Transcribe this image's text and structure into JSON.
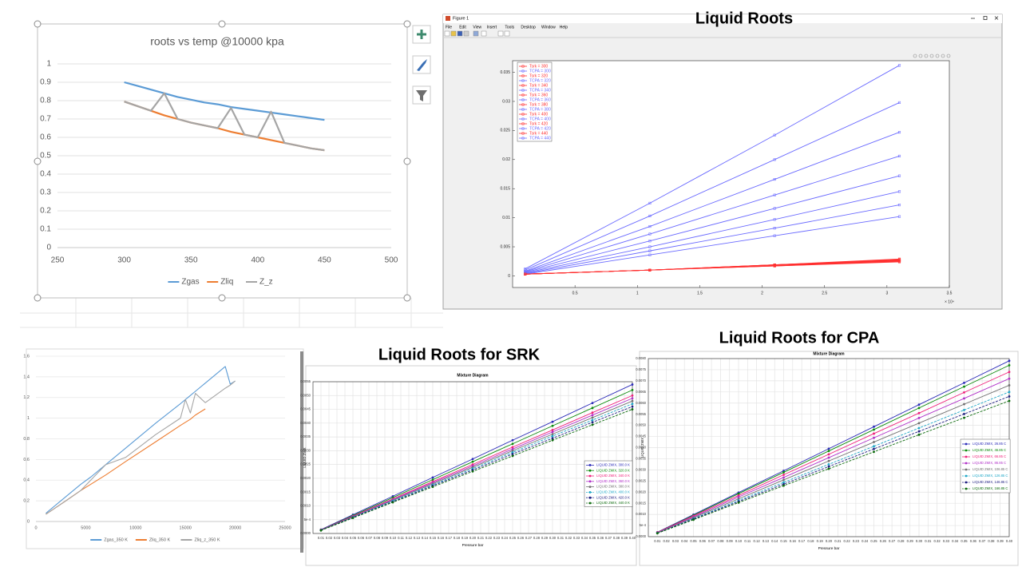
{
  "figure_window": {
    "title": "Figure 1",
    "menu": [
      "File",
      "Edit",
      "View",
      "Insert",
      "Tools",
      "Desktop",
      "Window",
      "Help"
    ]
  },
  "chart_data": [
    {
      "type": "line",
      "title": "roots vs temp @10000 kpa",
      "x": [
        300,
        310,
        320,
        330,
        340,
        350,
        360,
        370,
        380,
        390,
        400,
        410,
        420,
        430,
        440,
        450
      ],
      "xlim": [
        250,
        500
      ],
      "xticks": [
        250,
        300,
        350,
        400,
        450,
        500
      ],
      "ylim": [
        0,
        1
      ],
      "yticks": [
        0,
        0.1,
        0.2,
        0.3,
        0.4,
        0.5,
        0.6,
        0.7,
        0.8,
        0.9,
        1
      ],
      "grid": "y",
      "legend": "bottom",
      "series": [
        {
          "name": "Zgas",
          "color": "#5b9bd5",
          "values": [
            0.9,
            0.88,
            0.86,
            0.84,
            0.82,
            0.805,
            0.79,
            0.78,
            0.765,
            0.755,
            0.745,
            0.735,
            0.725,
            0.715,
            0.705,
            0.695
          ]
        },
        {
          "name": "Zliq",
          "color": "#ed7d31",
          "values": [
            0.795,
            0.77,
            0.745,
            0.72,
            0.7,
            0.68,
            0.665,
            0.65,
            0.63,
            0.615,
            0.6,
            0.585,
            0.57,
            0.555,
            0.54,
            0.53
          ]
        },
        {
          "name": "Z_z",
          "color": "#a5a5a5",
          "values": [
            0.795,
            0.77,
            0.745,
            0.84,
            0.7,
            0.68,
            0.665,
            0.65,
            0.76,
            0.615,
            0.6,
            0.74,
            0.57,
            0.555,
            0.54,
            0.53
          ]
        }
      ]
    },
    {
      "type": "line",
      "caption": "Liquid Roots",
      "x": [
        0.1,
        1.1,
        2.1,
        3.1
      ],
      "xlim": [
        0,
        3.5
      ],
      "xticks": [
        0.5,
        1,
        1.5,
        2,
        2.5,
        3,
        3.5
      ],
      "x_exponent": "× 10⁴",
      "ylim": [
        -0.002,
        0.037
      ],
      "yticks": [
        0,
        0.005,
        0.01,
        0.015,
        0.02,
        0.025,
        0.03,
        0.035
      ],
      "grid": false,
      "legend": "top-left",
      "marker": "square",
      "series": [
        {
          "name": "Tsrk = 300",
          "color": "#ff3030",
          "values": [
            0.0003,
            0.001,
            0.0017,
            0.0024
          ]
        },
        {
          "name": "TCPA = 300",
          "color": "#6a6aff",
          "values": [
            0.0003,
            0.0036,
            0.0069,
            0.0102
          ]
        },
        {
          "name": "Tsrk = 320",
          "color": "#ff3030",
          "values": [
            0.0003,
            0.001,
            0.0017,
            0.0025
          ]
        },
        {
          "name": "TCPA = 320",
          "color": "#6a6aff",
          "values": [
            0.0004,
            0.0043,
            0.0082,
            0.0122
          ]
        },
        {
          "name": "Tsrk = 340",
          "color": "#ff3030",
          "values": [
            0.0003,
            0.001,
            0.0018,
            0.0025
          ]
        },
        {
          "name": "TCPA = 340",
          "color": "#6a6aff",
          "values": [
            0.0005,
            0.005,
            0.0097,
            0.0145
          ]
        },
        {
          "name": "Tsrk = 360",
          "color": "#ff3030",
          "values": [
            0.0003,
            0.001,
            0.0018,
            0.0026
          ]
        },
        {
          "name": "TCPA = 360",
          "color": "#6a6aff",
          "values": [
            0.0006,
            0.006,
            0.0116,
            0.0172
          ]
        },
        {
          "name": "Tsrk = 380",
          "color": "#ff3030",
          "values": [
            0.0003,
            0.001,
            0.0018,
            0.0027
          ]
        },
        {
          "name": "TCPA = 380",
          "color": "#6a6aff",
          "values": [
            0.0007,
            0.0072,
            0.0139,
            0.0206
          ]
        },
        {
          "name": "Tsrk = 400",
          "color": "#ff3030",
          "values": [
            0.0003,
            0.001,
            0.0019,
            0.0027
          ]
        },
        {
          "name": "TCPA = 400",
          "color": "#6a6aff",
          "values": [
            0.0008,
            0.0085,
            0.0166,
            0.0247
          ]
        },
        {
          "name": "Tsrk = 420",
          "color": "#ff3030",
          "values": [
            0.0003,
            0.001,
            0.0019,
            0.0028
          ]
        },
        {
          "name": "TCPA = 420",
          "color": "#6a6aff",
          "values": [
            0.001,
            0.0103,
            0.02,
            0.0298
          ]
        },
        {
          "name": "Tsrk = 440",
          "color": "#ff3030",
          "values": [
            0.0003,
            0.001,
            0.0019,
            0.0029
          ]
        },
        {
          "name": "TCPA = 440",
          "color": "#6a6aff",
          "values": [
            0.0012,
            0.0125,
            0.0242,
            0.0362
          ]
        }
      ]
    },
    {
      "type": "line",
      "x": [
        1000,
        3000,
        4500,
        5500,
        7000,
        9000,
        12000,
        14500,
        15000,
        15500,
        16000,
        17000,
        19000,
        19500,
        20000
      ],
      "xlim": [
        0,
        25000
      ],
      "xticks": [
        0,
        5000,
        10000,
        15000,
        20000,
        25000
      ],
      "ylim": [
        0,
        1.6
      ],
      "yticks": [
        0,
        0.2,
        0.4,
        0.6,
        0.8,
        1,
        1.2,
        1.4,
        1.6
      ],
      "grid": "y",
      "legend": "bottom",
      "series": [
        {
          "name": "Zgas_350 K",
          "color": "#5b9bd5",
          "values": [
            0.08,
            0.24,
            0.36,
            0.43,
            0.55,
            0.71,
            0.95,
            1.14,
            1.18,
            1.22,
            1.26,
            1.34,
            1.5,
            1.33,
            1.36
          ]
        },
        {
          "name": "Zliq_350 K",
          "color": "#ed7d31",
          "values": [
            0.07,
            0.2,
            0.3,
            0.36,
            0.45,
            0.58,
            0.77,
            0.93,
            0.96,
            0.99,
            1.03,
            1.09,
            null,
            null,
            null
          ]
        },
        {
          "name": "Zliq_z_350 K",
          "color": "#a5a5a5",
          "values": [
            0.07,
            0.2,
            0.3,
            0.4,
            0.55,
            0.62,
            0.84,
            1.0,
            1.18,
            1.05,
            1.24,
            1.15,
            1.29,
            1.32,
            1.36
          ]
        }
      ]
    },
    {
      "type": "line",
      "caption": "Liquid Roots for SRK",
      "title": "Mixture Diagram",
      "xlabel": "Pressure bar",
      "ylabel": "LIQUID ZMIX",
      "x": [
        0.01,
        0.05,
        0.1,
        0.15,
        0.2,
        0.25,
        0.3,
        0.35,
        0.4
      ],
      "xlim": [
        0,
        0.4
      ],
      "xticks": [
        0.01,
        0.02,
        0.03,
        0.04,
        0.05,
        0.06,
        0.07,
        0.08,
        0.09,
        {
          "value": 0.1,
          "label": "0.10"
        },
        0.11,
        0.12,
        0.13,
        0.14,
        0.15,
        0.16,
        0.17,
        0.18,
        0.19,
        {
          "value": 0.2,
          "label": "0.20"
        },
        0.21,
        0.22,
        0.23,
        0.24,
        0.25,
        0.26,
        0.27,
        0.28,
        0.29,
        {
          "value": 0.3,
          "label": "0.30"
        },
        0.31,
        0.32,
        0.33,
        0.34,
        0.35,
        0.36,
        0.37,
        0.38,
        0.39,
        {
          "value": 0.4,
          "label": "0.40"
        }
      ],
      "ylim": [
        0,
        0.0055
      ],
      "yticks": [
        {
          "value": 0,
          "label": "0.0000"
        },
        {
          "value": 0.0005,
          "label": "5e-4"
        },
        {
          "value": 0.001,
          "label": "0.0010"
        },
        0.0015,
        {
          "value": 0.002,
          "label": "0.0020"
        },
        0.0025,
        {
          "value": 0.003,
          "label": "0.0030"
        },
        0.0035,
        {
          "value": 0.004,
          "label": "0.0040"
        },
        0.0045,
        {
          "value": 0.005,
          "label": "0.0050"
        },
        0.0055
      ],
      "grid": "both",
      "legend": "right",
      "marker": "circle",
      "series": [
        {
          "name": "LIQUID ZMIX, 300.0 K",
          "color": "#2a2ab8",
          "values": [
            0.00014,
            0.00068,
            0.00135,
            0.00203,
            0.0027,
            0.00338,
            0.00405,
            0.00473,
            0.0054
          ]
        },
        {
          "name": "LIQUID ZMIX, 320.0 K",
          "color": "#0b8a0b",
          "values": [
            0.00013,
            0.00065,
            0.0013,
            0.00195,
            0.0026,
            0.00325,
            0.0039,
            0.00455,
            0.0052
          ]
        },
        {
          "name": "LIQUID ZMIX, 340.0 K",
          "color": "#f0207a",
          "values": [
            0.00013,
            0.00063,
            0.00125,
            0.00188,
            0.0025,
            0.00313,
            0.00375,
            0.00438,
            0.005
          ]
        },
        {
          "name": "LIQUID ZMIX, 360.0 K",
          "color": "#b030c8",
          "values": [
            0.00012,
            0.00061,
            0.00123,
            0.00184,
            0.00245,
            0.00306,
            0.00368,
            0.00429,
            0.0049
          ]
        },
        {
          "name": "LIQUID ZMIX, 380.0 K",
          "color": "#707070",
          "values": [
            0.00012,
            0.0006,
            0.0012,
            0.0018,
            0.0024,
            0.003,
            0.0036,
            0.0042,
            0.0048
          ]
        },
        {
          "name": "LIQUID ZMIX, 400.0 K",
          "color": "#20a8c8",
          "dashed": true,
          "values": [
            0.00012,
            0.00059,
            0.00118,
            0.00176,
            0.00235,
            0.00294,
            0.00353,
            0.00411,
            0.0047
          ]
        },
        {
          "name": "LIQUID ZMIX, 420.0 K",
          "color": "#1e1e80",
          "dashed": true,
          "values": [
            0.00012,
            0.00058,
            0.00115,
            0.00173,
            0.0023,
            0.00288,
            0.00345,
            0.00403,
            0.0046
          ]
        },
        {
          "name": "LIQUID ZMIX, 440.0 K",
          "color": "#0d6b0d",
          "dashed": true,
          "values": [
            0.00011,
            0.00056,
            0.00113,
            0.00169,
            0.00225,
            0.00281,
            0.00338,
            0.00394,
            0.0045
          ]
        }
      ]
    },
    {
      "type": "line",
      "caption": "Liquid Roots for CPA",
      "title": "Mixture Diagram",
      "xlabel": "Pressure bar",
      "ylabel": "LIQUID ZMIX",
      "x": [
        0.01,
        0.05,
        0.1,
        0.15,
        0.2,
        0.25,
        0.3,
        0.35,
        0.4
      ],
      "xlim": [
        0,
        0.4
      ],
      "xticks": [
        0.01,
        0.02,
        0.03,
        0.04,
        0.05,
        0.06,
        0.07,
        0.08,
        0.09,
        {
          "value": 0.1,
          "label": "0.10"
        },
        0.11,
        0.12,
        0.13,
        0.14,
        0.15,
        0.16,
        0.17,
        0.18,
        0.19,
        {
          "value": 0.2,
          "label": "0.20"
        },
        0.21,
        0.22,
        0.23,
        0.24,
        0.25,
        0.26,
        0.27,
        0.28,
        0.29,
        {
          "value": 0.3,
          "label": "0.30"
        },
        0.31,
        0.32,
        0.33,
        0.34,
        0.35,
        0.36,
        0.37,
        0.38,
        0.39,
        {
          "value": 0.4,
          "label": "0.40"
        }
      ],
      "ylim": [
        0,
        0.008
      ],
      "yticks": [
        {
          "value": 0,
          "label": "0.0000"
        },
        {
          "value": 0.0005,
          "label": "5e-4"
        },
        {
          "value": 0.001,
          "label": "0.0010"
        },
        0.0015,
        {
          "value": 0.002,
          "label": "0.0020"
        },
        0.0025,
        {
          "value": 0.003,
          "label": "0.0030"
        },
        0.0035,
        {
          "value": 0.004,
          "label": "0.0040"
        },
        0.0045,
        {
          "value": 0.005,
          "label": "0.0050"
        },
        0.0055,
        {
          "value": 0.006,
          "label": "0.0060"
        },
        0.0065,
        {
          "value": 0.007,
          "label": "0.0070"
        },
        0.0075,
        {
          "value": 0.008,
          "label": "0.0080"
        }
      ],
      "grid": "both",
      "legend": "right",
      "marker": "circle",
      "series": [
        {
          "name": "LIQUID ZMIX, 26.85 C",
          "color": "#2a2ab8",
          "values": [
            0.0002,
            0.00099,
            0.00198,
            0.00296,
            0.00395,
            0.00494,
            0.00593,
            0.00691,
            0.0079
          ]
        },
        {
          "name": "LIQUID ZMIX, 46.85 C",
          "color": "#0b8a0b",
          "values": [
            0.00019,
            0.00096,
            0.00193,
            0.00289,
            0.00385,
            0.00481,
            0.00578,
            0.00674,
            0.0077
          ]
        },
        {
          "name": "LIQUID ZMIX, 66.85 C",
          "color": "#f0207a",
          "values": [
            0.00019,
            0.00093,
            0.00185,
            0.00278,
            0.0037,
            0.00463,
            0.00555,
            0.00648,
            0.0074
          ]
        },
        {
          "name": "LIQUID ZMIX, 86.85 C",
          "color": "#b030c8",
          "values": [
            0.00018,
            0.00089,
            0.00178,
            0.00266,
            0.00355,
            0.00444,
            0.00533,
            0.00621,
            0.0071
          ]
        },
        {
          "name": "LIQUID ZMIX, 106.85 C",
          "color": "#707070",
          "values": [
            0.00017,
            0.00085,
            0.0017,
            0.00255,
            0.0034,
            0.00425,
            0.0051,
            0.00595,
            0.0068
          ]
        },
        {
          "name": "LIQUID ZMIX, 126.85 C",
          "color": "#20a8c8",
          "dashed": true,
          "values": [
            0.00016,
            0.00081,
            0.00163,
            0.00244,
            0.00325,
            0.00406,
            0.00488,
            0.00569,
            0.0065
          ]
        },
        {
          "name": "LIQUID ZMIX, 146.85 C",
          "color": "#1e1e80",
          "dashed": true,
          "values": [
            0.00016,
            0.00079,
            0.00158,
            0.00236,
            0.00315,
            0.00394,
            0.00473,
            0.00551,
            0.0063
          ]
        },
        {
          "name": "LIQUID ZMIX, 166.85 C",
          "color": "#0d6b0d",
          "dashed": true,
          "values": [
            0.00015,
            0.00076,
            0.00153,
            0.00229,
            0.00305,
            0.00381,
            0.00458,
            0.00534,
            0.0061
          ]
        }
      ]
    }
  ]
}
